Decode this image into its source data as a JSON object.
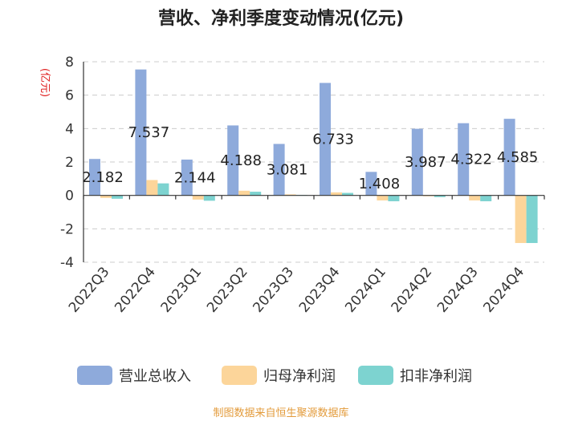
{
  "chart_data": {
    "type": "bar",
    "title": "营收、净利季度变动情况(亿元)",
    "ylabel": "(亿元)",
    "ylim": [
      -4,
      8
    ],
    "yticks": [
      8,
      6,
      4,
      2,
      0,
      -2,
      -4
    ],
    "grid": true,
    "legend_position": "bottom",
    "categories": [
      "2022Q3",
      "2022Q4",
      "2023Q1",
      "2023Q2",
      "2023Q3",
      "2023Q4",
      "2024Q1",
      "2024Q2",
      "2024Q3",
      "2024Q4"
    ],
    "series": [
      {
        "name": "营业总收入",
        "color": "#8eaadb",
        "values": [
          2.182,
          7.537,
          2.144,
          4.188,
          3.081,
          6.733,
          1.408,
          3.987,
          4.322,
          4.585
        ]
      },
      {
        "name": "归母净利润",
        "color": "#fcd59a",
        "values": [
          -0.15,
          0.92,
          -0.25,
          0.28,
          0.06,
          0.18,
          -0.3,
          -0.05,
          -0.3,
          -2.85
        ]
      },
      {
        "name": "扣非净利润",
        "color": "#7dd3d0",
        "values": [
          -0.2,
          0.72,
          -0.32,
          0.22,
          0.03,
          0.15,
          -0.35,
          -0.1,
          -0.35,
          -2.85
        ]
      }
    ],
    "data_labels": [
      "2.182",
      "7.537",
      "2.144",
      "4.188",
      "3.081",
      "6.733",
      "1.408",
      "3.987",
      "4.322",
      "4.585"
    ]
  },
  "source": "制图数据来自恒生聚源数据库"
}
